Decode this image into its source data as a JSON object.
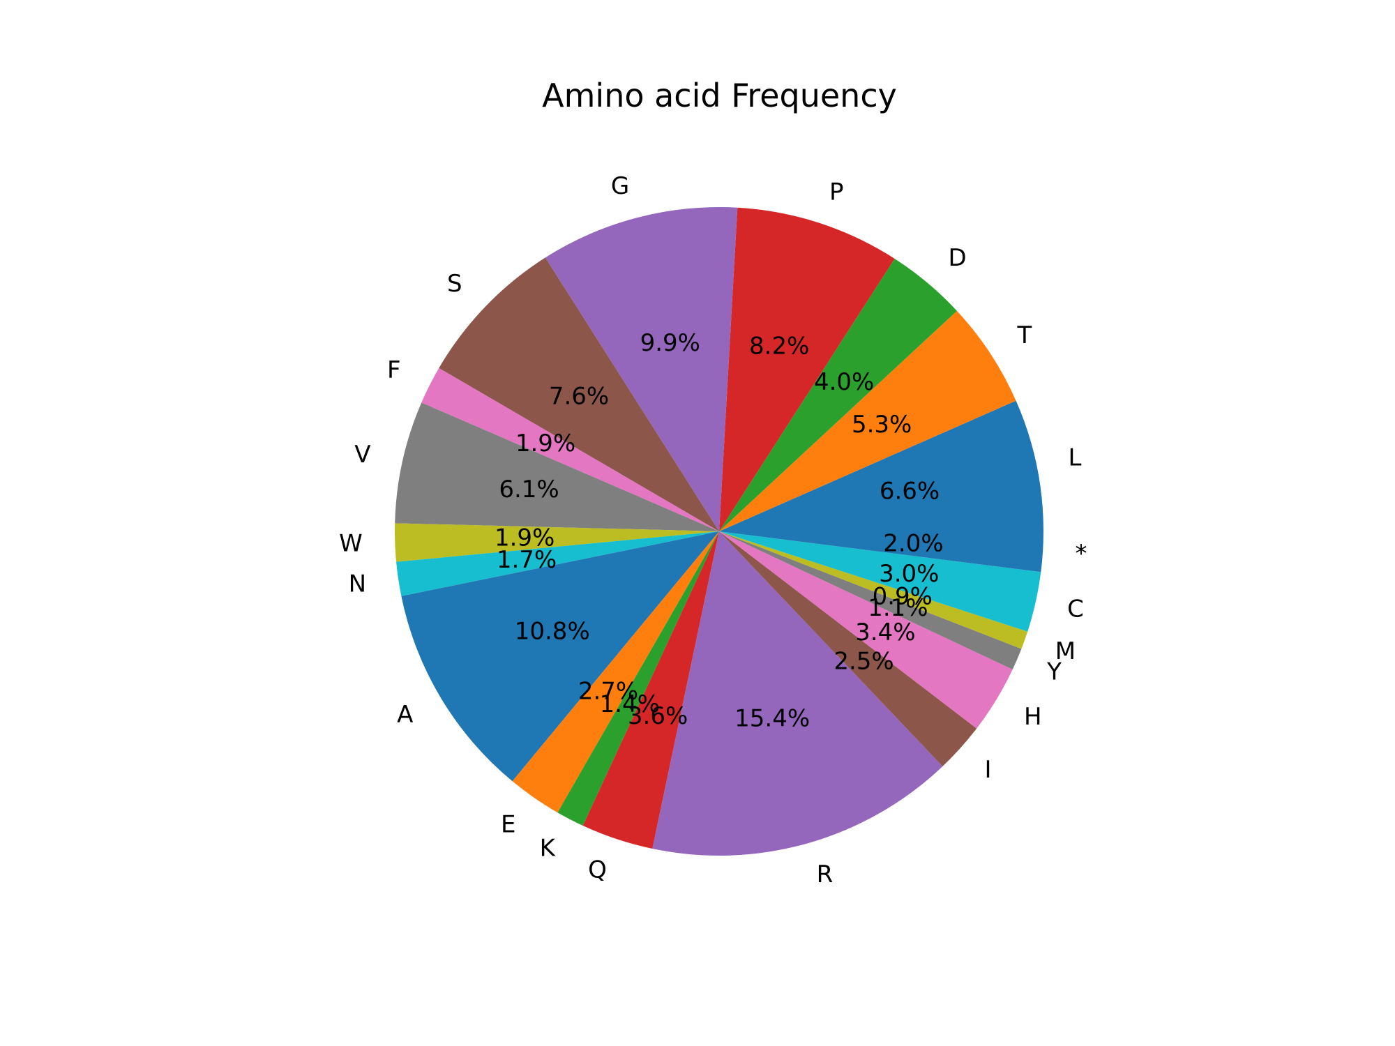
{
  "chart_data": {
    "type": "pie",
    "title": "Amino acid Frequency",
    "start_angle_deg": 0,
    "direction": "counterclockwise",
    "slices": [
      {
        "label": "L",
        "value": 6.6,
        "pct_label": "6.6%",
        "color": "#1f77b4"
      },
      {
        "label": "T",
        "value": 5.3,
        "pct_label": "5.3%",
        "color": "#ff7f0e"
      },
      {
        "label": "D",
        "value": 4.0,
        "pct_label": "4.0%",
        "color": "#2ca02c"
      },
      {
        "label": "P",
        "value": 8.2,
        "pct_label": "8.2%",
        "color": "#d62728"
      },
      {
        "label": "G",
        "value": 9.9,
        "pct_label": "9.9%",
        "color": "#9467bd"
      },
      {
        "label": "S",
        "value": 7.6,
        "pct_label": "7.6%",
        "color": "#8c564b"
      },
      {
        "label": "F",
        "value": 1.9,
        "pct_label": "1.9%",
        "color": "#e377c2"
      },
      {
        "label": "V",
        "value": 6.1,
        "pct_label": "6.1%",
        "color": "#7f7f7f"
      },
      {
        "label": "W",
        "value": 1.9,
        "pct_label": "1.9%",
        "color": "#bcbd22"
      },
      {
        "label": "N",
        "value": 1.7,
        "pct_label": "1.7%",
        "color": "#17becf"
      },
      {
        "label": "A",
        "value": 10.8,
        "pct_label": "10.8%",
        "color": "#1f77b4"
      },
      {
        "label": "E",
        "value": 2.7,
        "pct_label": "2.7%",
        "color": "#ff7f0e"
      },
      {
        "label": "K",
        "value": 1.4,
        "pct_label": "1.4%",
        "color": "#2ca02c"
      },
      {
        "label": "Q",
        "value": 3.6,
        "pct_label": "3.6%",
        "color": "#d62728"
      },
      {
        "label": "R",
        "value": 15.4,
        "pct_label": "15.4%",
        "color": "#9467bd"
      },
      {
        "label": "I",
        "value": 2.5,
        "pct_label": "2.5%",
        "color": "#8c564b"
      },
      {
        "label": "H",
        "value": 3.4,
        "pct_label": "3.4%",
        "color": "#e377c2"
      },
      {
        "label": "Y",
        "value": 1.1,
        "pct_label": "1.1%",
        "color": "#7f7f7f"
      },
      {
        "label": "M",
        "value": 0.9,
        "pct_label": "0.9%",
        "color": "#bcbd22"
      },
      {
        "label": "C",
        "value": 3.0,
        "pct_label": "3.0%",
        "color": "#17becf"
      },
      {
        "label": "*",
        "value": 2.0,
        "pct_label": "2.0%",
        "color": "#1f77b4"
      }
    ]
  }
}
